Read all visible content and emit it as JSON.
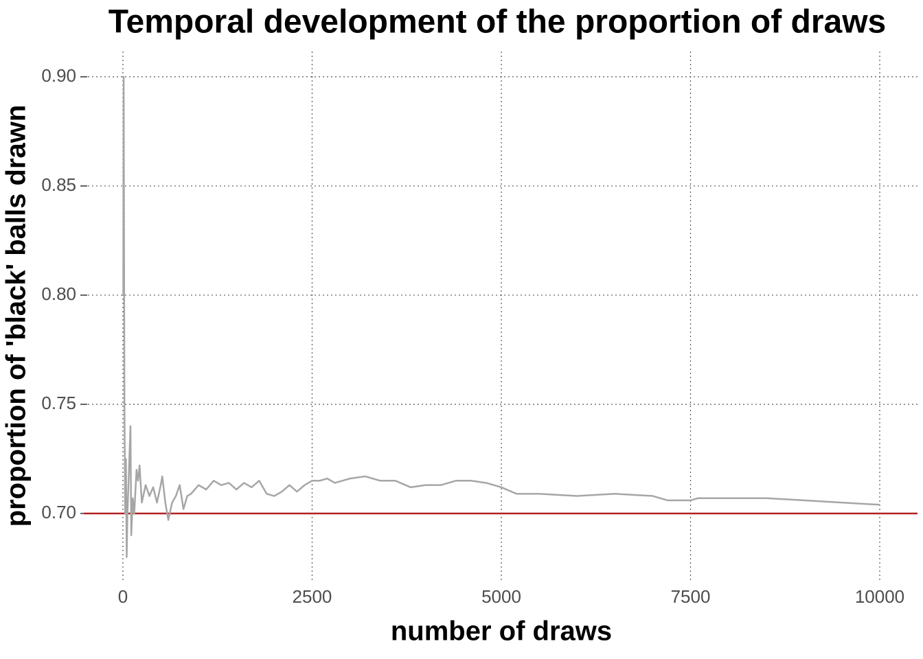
{
  "chart_data": {
    "type": "line",
    "title": "Temporal development of the proportion of draws",
    "x_label": "number of draws",
    "y_label": "proportion of 'black' balls drawn",
    "x": [
      5,
      10,
      20,
      30,
      40,
      50,
      60,
      80,
      100,
      110,
      130,
      150,
      180,
      200,
      220,
      250,
      300,
      350,
      400,
      450,
      500,
      520,
      560,
      600,
      650,
      700,
      750,
      800,
      850,
      900,
      1000,
      1100,
      1200,
      1300,
      1400,
      1500,
      1600,
      1700,
      1800,
      1900,
      2000,
      2100,
      2200,
      2300,
      2400,
      2500,
      2600,
      2700,
      2800,
      2900,
      3000,
      3200,
      3400,
      3600,
      3800,
      4000,
      4200,
      4400,
      4600,
      4800,
      5000,
      5200,
      5500,
      6000,
      6500,
      7000,
      7200,
      7500,
      7600,
      8000,
      8500,
      9000,
      9500,
      10000
    ],
    "series": [
      {
        "color": "#a6a6a6",
        "values": [
          0.8,
          0.9,
          0.75,
          0.7,
          0.725,
          0.68,
          0.7,
          0.72,
          0.74,
          0.69,
          0.707,
          0.7,
          0.72,
          0.715,
          0.722,
          0.705,
          0.713,
          0.708,
          0.712,
          0.705,
          0.713,
          0.717,
          0.705,
          0.697,
          0.705,
          0.708,
          0.713,
          0.702,
          0.708,
          0.709,
          0.713,
          0.711,
          0.715,
          0.713,
          0.714,
          0.711,
          0.714,
          0.712,
          0.715,
          0.709,
          0.708,
          0.71,
          0.713,
          0.71,
          0.713,
          0.715,
          0.715,
          0.716,
          0.714,
          0.715,
          0.716,
          0.717,
          0.715,
          0.715,
          0.712,
          0.713,
          0.713,
          0.715,
          0.715,
          0.714,
          0.712,
          0.709,
          0.709,
          0.708,
          0.709,
          0.708,
          0.706,
          0.706,
          0.707,
          0.707,
          0.707,
          0.706,
          0.705,
          0.704
        ]
      }
    ],
    "reference_line": {
      "value": 0.7,
      "color": "#b22222"
    },
    "xlim": [
      -517,
      10499
    ],
    "xticks": [
      0,
      2500,
      5000,
      7500,
      10000
    ],
    "ylim": [
      0.6695,
      0.9116
    ],
    "yticks": [
      {
        "value": 0.7,
        "label": "0.70"
      },
      {
        "value": 0.75,
        "label": "0.75"
      },
      {
        "value": 0.8,
        "label": "0.80"
      },
      {
        "value": 0.85,
        "label": "0.85"
      },
      {
        "value": 0.9,
        "label": "0.90"
      }
    ],
    "grid": true
  }
}
